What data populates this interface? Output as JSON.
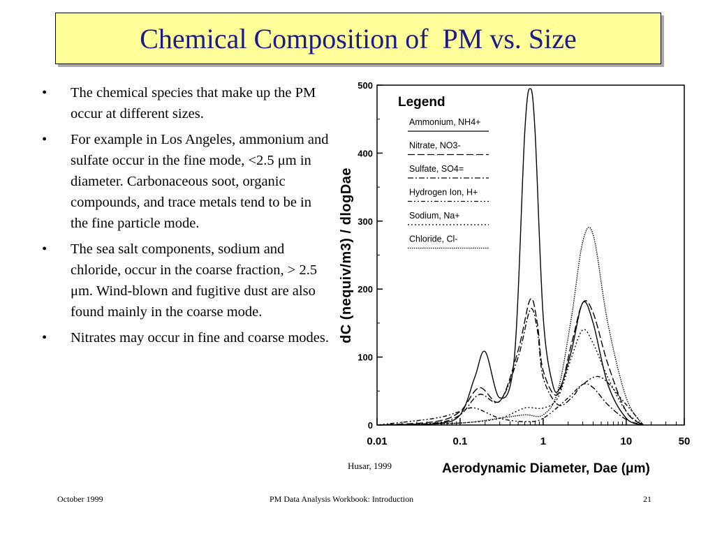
{
  "slide": {
    "title": "Chemical Composition of  PM vs. Size",
    "bullets": [
      "The chemical species that make up the PM occur at different sizes.",
      "For example in Los Angeles, ammonium and sulfate occur in the fine mode, <2.5 μm in diameter. Carbonaceous soot, organic compounds, and trace metals tend to be in the fine particle mode.",
      "The sea salt components, sodium and chloride, occur in the coarse fraction, > 2.5 μm. Wind-blown and fugitive dust are also found mainly in the coarse mode.",
      "Nitrates may occur in fine and coarse modes."
    ],
    "bullet_symbol": "•",
    "credit": "Husar, 1999",
    "footer": {
      "left": "October 1999",
      "center": "PM Data Analysis Workbook: Introduction",
      "right": "21"
    }
  },
  "chart_data": {
    "type": "line",
    "xscale": "log",
    "xlim": [
      0.01,
      50
    ],
    "ylim": [
      0,
      500
    ],
    "xticks": [
      "0.01",
      "0.1",
      "1",
      "10",
      "50"
    ],
    "yticks": [
      "0",
      "100",
      "200",
      "300",
      "400",
      "500"
    ],
    "xlabel": "Aerodynamic Diameter, Dae (μm)",
    "ylabel": "dC (nequiv/m3) / dlogDae",
    "legend_title": "Legend",
    "legend_position": "top-left",
    "series": [
      {
        "name": "Ammonium, NH4+",
        "dash": "solid",
        "x": [
          0.01,
          0.05,
          0.1,
          0.15,
          0.2,
          0.3,
          0.45,
          0.6,
          0.7,
          0.8,
          1.0,
          1.3,
          1.6,
          2.2,
          3.0,
          4.0,
          6.0,
          10,
          16
        ],
        "y": [
          0,
          2,
          15,
          70,
          108,
          40,
          100,
          430,
          495,
          430,
          160,
          60,
          55,
          110,
          180,
          150,
          60,
          10,
          0
        ]
      },
      {
        "name": "Nitrate, NO3-",
        "dash": "long-dash",
        "x": [
          0.01,
          0.05,
          0.1,
          0.17,
          0.3,
          0.5,
          0.7,
          0.85,
          1.0,
          1.5,
          2.2,
          3.0,
          4.0,
          6.0,
          10,
          16
        ],
        "y": [
          0,
          5,
          20,
          55,
          35,
          110,
          185,
          150,
          80,
          45,
          120,
          180,
          165,
          90,
          20,
          0
        ]
      },
      {
        "name": "Sulfate, SO4=",
        "dash": "dash-dot",
        "x": [
          0.01,
          0.05,
          0.1,
          0.17,
          0.3,
          0.5,
          0.7,
          0.85,
          1.0,
          1.5,
          2.2,
          3.0,
          4.0,
          6.0,
          10,
          16
        ],
        "y": [
          0,
          3,
          15,
          45,
          35,
          100,
          170,
          140,
          70,
          30,
          40,
          60,
          55,
          30,
          8,
          0
        ]
      },
      {
        "name": "Hydrogen Ion, H+",
        "dash": "dash-dot-dot",
        "x": [
          0.01,
          0.05,
          0.1,
          0.15,
          0.3,
          0.6,
          1.0,
          2.0,
          3.0,
          5.0,
          10,
          16
        ],
        "y": [
          0,
          10,
          20,
          25,
          10,
          5,
          10,
          40,
          60,
          70,
          30,
          0
        ]
      },
      {
        "name": "Sodium, Na+",
        "dash": "dotted",
        "x": [
          0.01,
          0.1,
          0.3,
          0.6,
          1.0,
          1.5,
          2.2,
          3.0,
          4.0,
          6.0,
          10,
          16
        ],
        "y": [
          0,
          3,
          10,
          25,
          25,
          40,
          100,
          140,
          120,
          70,
          20,
          0
        ]
      },
      {
        "name": "Chloride, Cl-",
        "dash": "dense-dot",
        "x": [
          0.01,
          0.1,
          0.3,
          0.6,
          1.0,
          1.5,
          2.2,
          3.0,
          4.0,
          6.0,
          10,
          16
        ],
        "y": [
          0,
          3,
          10,
          15,
          15,
          50,
          160,
          270,
          280,
          150,
          40,
          0
        ]
      }
    ]
  }
}
